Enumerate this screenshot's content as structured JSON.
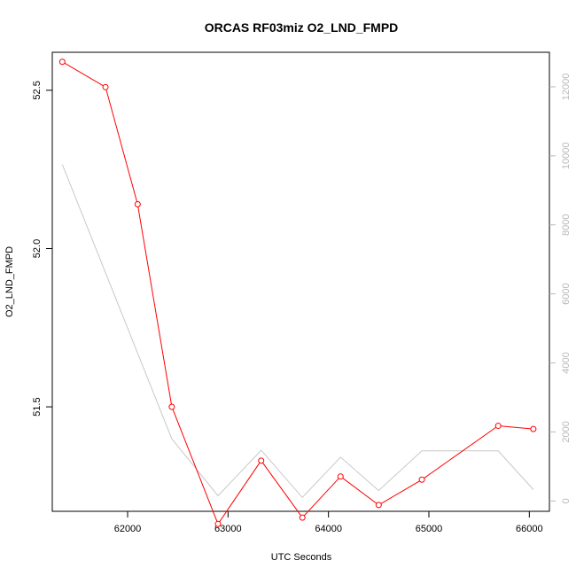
{
  "chart_data": {
    "type": "line",
    "title": "ORCAS RF03miz O2_LND_FMPD",
    "xlabel": "UTC Seconds",
    "ylabel": "O2_LND_FMPD",
    "xlim": [
      61250,
      66200
    ],
    "ylim": [
      51.17,
      52.62
    ],
    "y2lim": [
      -300,
      13000
    ],
    "x_ticks": [
      62000,
      63000,
      64000,
      65000,
      66000
    ],
    "y_ticks": [
      51.5,
      52.0,
      52.5
    ],
    "y_tick_labels": [
      "51.5",
      "52.0",
      "52.5"
    ],
    "y2_ticks": [
      0,
      2000,
      4000,
      6000,
      8000,
      10000,
      12000
    ],
    "grid": false,
    "series": [
      {
        "color": "#ff0000",
        "marker": "open-circle",
        "axis": "left",
        "x": [
          61350,
          61780,
          62100,
          62440,
          62900,
          63330,
          63740,
          64120,
          64500,
          64930,
          65690,
          66040
        ],
        "y": [
          52.59,
          52.51,
          52.14,
          51.5,
          51.13,
          51.33,
          51.15,
          51.28,
          51.19,
          51.27,
          51.44,
          51.43
        ]
      },
      {
        "color": "#c8c8c8",
        "marker": "none",
        "axis": "right",
        "x": [
          61350,
          62440,
          62900,
          63330,
          63740,
          64120,
          64500,
          64930,
          65690,
          66040
        ],
        "y": [
          9750,
          1800,
          150,
          1470,
          100,
          1270,
          300,
          1450,
          1450,
          330
        ]
      }
    ]
  }
}
